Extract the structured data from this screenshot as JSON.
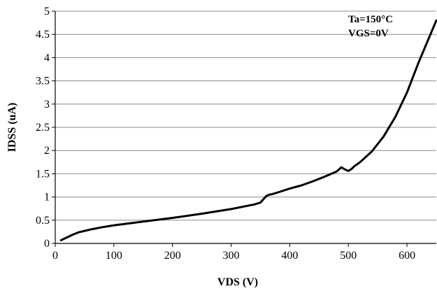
{
  "chart_data": {
    "type": "line",
    "title": "",
    "xlabel": "VDS (V)",
    "ylabel": "IDSS (uA)",
    "xlim": [
      0,
      650
    ],
    "ylim": [
      0,
      5
    ],
    "x_ticks": [
      0,
      100,
      200,
      300,
      400,
      500,
      600
    ],
    "x_tick_labels": [
      "0",
      "100",
      "200",
      "300",
      "400",
      "500",
      "600"
    ],
    "y_ticks": [
      0,
      0.5,
      1,
      1.5,
      2,
      2.5,
      3,
      3.5,
      4,
      4.5,
      5
    ],
    "y_tick_labels": [
      "0",
      "0.5",
      "1",
      "1.5",
      "2",
      "2.5",
      "3",
      "3.5",
      "4",
      "4.5",
      "5"
    ],
    "grid": "horizontal",
    "legend": "none",
    "annotations": [
      "Ta=150°C",
      "VGS=0V"
    ],
    "line_color": "#000000",
    "series": [
      {
        "x": [
          10,
          20,
          30,
          40,
          60,
          80,
          100,
          150,
          200,
          250,
          300,
          340,
          350,
          355,
          360,
          365,
          370,
          380,
          400,
          420,
          440,
          460,
          480,
          488,
          493,
          500,
          505,
          510,
          520,
          540,
          560,
          580,
          600,
          620,
          640,
          650
        ],
        "y": [
          0.07,
          0.13,
          0.19,
          0.24,
          0.3,
          0.35,
          0.39,
          0.47,
          0.55,
          0.64,
          0.74,
          0.84,
          0.88,
          0.95,
          1.02,
          1.05,
          1.06,
          1.1,
          1.18,
          1.25,
          1.34,
          1.44,
          1.55,
          1.64,
          1.6,
          1.56,
          1.6,
          1.66,
          1.75,
          1.98,
          2.3,
          2.72,
          3.25,
          3.9,
          4.5,
          4.8
        ]
      }
    ]
  }
}
